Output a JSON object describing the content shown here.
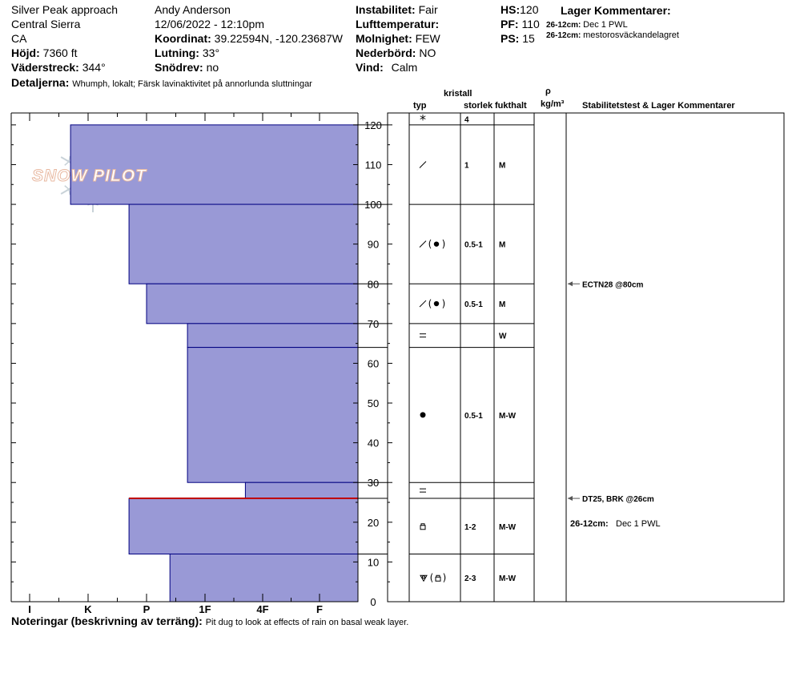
{
  "header": {
    "location": "Silver Peak approach",
    "region": "Central Sierra",
    "state": "CA",
    "elevation_label": "Höjd:",
    "elevation_value": "7360 ft",
    "aspect_label": "Väderstreck:",
    "aspect_value": "344°",
    "observer": "Andy Anderson",
    "datetime": "12/06/2022 - 12:10pm",
    "coord_label": "Koordinat:",
    "coord_value": "39.22594N, -120.23687W",
    "slope_label": "Lutning:",
    "slope_value": "33°",
    "drift_label": "Snödrev:",
    "drift_value": "no",
    "instability_label": "Instabilitet:",
    "instability_value": "Fair",
    "airtemp_label": "Lufttemperatur:",
    "airtemp_value": "",
    "cloud_label": "Molnighet:",
    "cloud_value": "FEW",
    "precip_label": "Nederbörd:",
    "precip_value": "NO",
    "wind_label": "Vind:",
    "wind_value": "Calm",
    "hs_label": "HS:",
    "hs_value": "120",
    "pf_label": "PF:",
    "pf_value": "110",
    "ps_label": "PS:",
    "ps_value": "15",
    "layer_comments_title": "Lager Kommentarer:",
    "layer_comment_1_range": "26-12cm:",
    "layer_comment_1_text": "Dec 1 PWL",
    "layer_comment_2_range": "26-12cm:",
    "layer_comment_2_text": "mestorosväckandelagret",
    "details_label": "Detaljerna:",
    "details_value": "Whumph, lokalt;  Färsk lavinaktivitet på annorlunda sluttningar"
  },
  "logo": {
    "text": "SNOW PILOT"
  },
  "columns": {
    "crystal": "kristall",
    "type": "typ",
    "size": "storlek",
    "moisture": "fukthalt",
    "rho": "ρ",
    "density_unit": "kg/m³",
    "stability": "Stabilitetstest & Lager Kommentarer"
  },
  "footer": {
    "notes_label": "Noteringar (beskrivning av terräng):",
    "notes_value": "Pit dug to look at effects of rain on basal weak layer."
  },
  "chart_data": {
    "type": "bar",
    "y_unit": "cm",
    "ylim": [
      0,
      123
    ],
    "yticks": [
      0,
      10,
      20,
      30,
      40,
      50,
      60,
      70,
      80,
      90,
      100,
      110,
      120
    ],
    "hardness_scale": [
      "I",
      "K",
      "P",
      "1F",
      "4F",
      "F"
    ],
    "layers": [
      {
        "top": 120,
        "bottom": 100,
        "hardness": 0.7,
        "crystal": "precip-frag",
        "size": "1",
        "moisture": "M"
      },
      {
        "top": 100,
        "bottom": 80,
        "hardness": 1.7,
        "crystal": "frag-round",
        "size": "0.5-1",
        "moisture": "M"
      },
      {
        "top": 80,
        "bottom": 70,
        "hardness": 2.0,
        "crystal": "frag-round",
        "size": "0.5-1",
        "moisture": "M"
      },
      {
        "top": 70,
        "bottom": 64,
        "hardness": 2.7,
        "crystal": "melt-freeze",
        "size": "",
        "moisture": "W"
      },
      {
        "top": 64,
        "bottom": 30,
        "hardness": 2.7,
        "crystal": "round",
        "size": "0.5-1",
        "moisture": "M-W"
      },
      {
        "top": 30,
        "bottom": 26,
        "hardness": 3.7,
        "crystal": "melt-freeze",
        "size": "",
        "moisture": ""
      },
      {
        "top": 26,
        "bottom": 12,
        "hardness": 1.7,
        "crystal": "facet",
        "size": "1-2",
        "moisture": "M-W"
      },
      {
        "top": 12,
        "bottom": 0,
        "hardness": 2.4,
        "crystal": "depth-hoar-facet",
        "size": "2-3",
        "moisture": "M-W"
      }
    ],
    "surface_row": {
      "crystal": "precip",
      "size": "4"
    },
    "weak_layer_marker": 26,
    "tests": [
      {
        "depth": 80,
        "text": "ECTN28 @80cm"
      },
      {
        "depth": 26,
        "text": "DT25, BRK @26cm"
      }
    ],
    "stability_comment": {
      "depth": 20,
      "range": "26-12cm:",
      "text": "Dec 1 PWL"
    }
  },
  "colors": {
    "bar_fill": "#9999d6",
    "bar_stroke": "#000080",
    "weak_layer": "#c00000",
    "logo_text": "#f0d2c3",
    "logo_flake": "#c8d2d8"
  }
}
